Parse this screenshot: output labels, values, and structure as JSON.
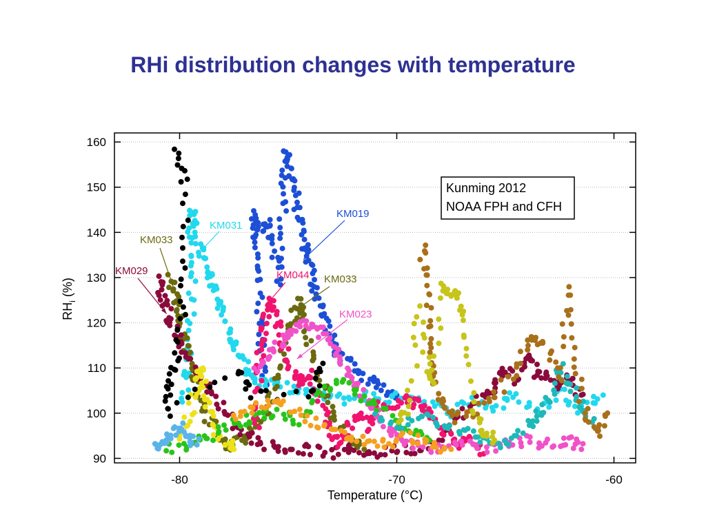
{
  "slide": {
    "title": "RHi distribution changes with temperature"
  },
  "colors": {
    "title": "#2e3192",
    "KM019": "#1d4fd6",
    "KM031": "#22d8ee",
    "KM033": "#6b6a10",
    "KM029": "#8b0a3c",
    "KM044": "#f0146e",
    "KM023": "#f052c8",
    "other_yellow": "#ece21a",
    "other_green": "#29c41a",
    "other_teal": "#1fb8b8",
    "other_brown": "#a8701a",
    "other_olive": "#c7c41a",
    "other_black": "#000000",
    "other_orange": "#f5a020",
    "other_skyblue": "#5ab4e8"
  },
  "chart_data": {
    "type": "scatter",
    "xlabel": "Temperature (°C)",
    "ylabel_main": "RH",
    "ylabel_sub": "i",
    "ylabel_unit": " (%)",
    "xlim": [
      -83,
      -59
    ],
    "ylim": [
      89,
      162
    ],
    "xticks": [
      -80,
      -70,
      -60
    ],
    "xtick_labels": [
      "-80",
      "-70",
      "-60"
    ],
    "yticks": [
      90,
      100,
      110,
      120,
      130,
      140,
      150,
      160
    ],
    "ytick_labels": [
      "90",
      "100",
      "110",
      "120",
      "130",
      "140",
      "150",
      "160"
    ],
    "grid": "horizontal dotted",
    "legend": {
      "line1": "Kunming 2012",
      "line2": "NOAA FPH and CFH",
      "placement": "top-right"
    },
    "series": [
      {
        "name": "KM019",
        "color": "#1d4fd6",
        "trace": [
          [
            -76.0,
            104
          ],
          [
            -76.2,
            112
          ],
          [
            -76.3,
            120
          ],
          [
            -76.4,
            130
          ],
          [
            -76.5,
            138
          ],
          [
            -76.6,
            144
          ],
          [
            -76.3,
            140
          ],
          [
            -75.9,
            142
          ],
          [
            -75.6,
            136
          ],
          [
            -75.4,
            128
          ],
          [
            -75.3,
            140
          ],
          [
            -75.2,
            150
          ],
          [
            -75.1,
            158
          ],
          [
            -75.0,
            155
          ],
          [
            -74.8,
            152
          ],
          [
            -74.6,
            146
          ],
          [
            -74.4,
            141
          ],
          [
            -74.2,
            136
          ],
          [
            -74.0,
            133
          ],
          [
            -73.8,
            128
          ],
          [
            -73.5,
            124
          ],
          [
            -73.2,
            119
          ],
          [
            -72.8,
            114
          ],
          [
            -72.2,
            111
          ],
          [
            -71.5,
            108
          ],
          [
            -70.8,
            106
          ],
          [
            -70.0,
            104
          ]
        ]
      },
      {
        "name": "KM031",
        "color": "#22d8ee",
        "trace": [
          [
            -79.8,
            103
          ],
          [
            -79.6,
            110
          ],
          [
            -79.5,
            120
          ],
          [
            -79.4,
            130
          ],
          [
            -79.5,
            138
          ],
          [
            -79.5,
            145
          ],
          [
            -79.2,
            140
          ],
          [
            -79.0,
            135
          ],
          [
            -78.7,
            131
          ],
          [
            -78.4,
            128
          ],
          [
            -78.1,
            124
          ],
          [
            -77.8,
            119
          ],
          [
            -77.5,
            115
          ],
          [
            -77.2,
            112
          ],
          [
            -76.8,
            109
          ],
          [
            -76.4,
            107
          ],
          [
            -75.5,
            106
          ],
          [
            -74.5,
            105
          ],
          [
            -73.5,
            104
          ],
          [
            -72.5,
            103
          ],
          [
            -71.5,
            104
          ],
          [
            -70.5,
            103
          ],
          [
            -69.5,
            104
          ],
          [
            -68.5,
            102
          ],
          [
            -67.5,
            100
          ],
          [
            -66.5,
            103
          ],
          [
            -65.5,
            101
          ],
          [
            -64.5,
            104
          ],
          [
            -63.5,
            100
          ],
          [
            -62.5,
            105
          ],
          [
            -61.5,
            101
          ],
          [
            -60.5,
            104
          ]
        ]
      },
      {
        "name": "KM033",
        "color": "#6b6a10",
        "trace": [
          [
            -80.4,
            130
          ],
          [
            -80.2,
            126
          ],
          [
            -80.0,
            121
          ],
          [
            -79.8,
            116
          ],
          [
            -79.5,
            111
          ],
          [
            -79.2,
            106
          ],
          [
            -78.9,
            102
          ],
          [
            -78.6,
            98
          ],
          [
            -78.2,
            95
          ],
          [
            -77.8,
            92
          ],
          [
            -77.2,
            94
          ],
          [
            -76.6,
            96
          ],
          [
            -76.0,
            100
          ],
          [
            -75.6,
            106
          ],
          [
            -75.3,
            112
          ],
          [
            -75.0,
            118
          ],
          [
            -74.7,
            122
          ],
          [
            -74.4,
            125
          ],
          [
            -74.1,
            118
          ],
          [
            -73.8,
            111
          ],
          [
            -73.3,
            104
          ],
          [
            -72.8,
            98
          ],
          [
            -72.2,
            94
          ],
          [
            -71.5,
            92
          ]
        ]
      },
      {
        "name": "KM029",
        "color": "#8b0a3c",
        "trace": [
          [
            -81.0,
            130
          ],
          [
            -80.8,
            126
          ],
          [
            -80.5,
            122
          ],
          [
            -80.2,
            118
          ],
          [
            -79.8,
            114
          ],
          [
            -79.3,
            110
          ],
          [
            -78.8,
            106
          ],
          [
            -78.2,
            102
          ],
          [
            -77.5,
            98
          ],
          [
            -76.8,
            95
          ],
          [
            -76.0,
            93
          ],
          [
            -75.0,
            92
          ],
          [
            -74.0,
            92
          ],
          [
            -73.0,
            91
          ],
          [
            -72.0,
            92
          ],
          [
            -71.0,
            91
          ],
          [
            -70.0,
            92
          ],
          [
            -69.0,
            92
          ],
          [
            -68.0,
            95
          ],
          [
            -67.0,
            100
          ],
          [
            -66.0,
            104
          ],
          [
            -65.5,
            106
          ],
          [
            -65.0,
            110
          ],
          [
            -64.5,
            107
          ],
          [
            -64.0,
            113
          ],
          [
            -63.5,
            109
          ],
          [
            -63.0,
            108
          ],
          [
            -62.5,
            106
          ],
          [
            -62.0,
            108
          ],
          [
            -61.5,
            104
          ]
        ]
      },
      {
        "name": "KM044",
        "color": "#f0146e",
        "trace": [
          [
            -76.5,
            96
          ],
          [
            -76.4,
            104
          ],
          [
            -76.3,
            112
          ],
          [
            -76.2,
            118
          ],
          [
            -76.0,
            122
          ],
          [
            -75.8,
            125
          ],
          [
            -75.5,
            120
          ],
          [
            -75.2,
            114
          ],
          [
            -74.8,
            109
          ],
          [
            -74.4,
            107
          ],
          [
            -74.0,
            109
          ],
          [
            -73.6,
            103
          ],
          [
            -73.2,
            98
          ],
          [
            -72.8,
            93
          ],
          [
            -72.3,
            96
          ],
          [
            -71.8,
            100
          ],
          [
            -71.3,
            97
          ],
          [
            -70.8,
            102
          ],
          [
            -70.2,
            101
          ],
          [
            -69.6,
            103
          ],
          [
            -69.0,
            102
          ],
          [
            -68.4,
            99
          ],
          [
            -67.8,
            96
          ],
          [
            -67.2,
            93
          ],
          [
            -66.6,
            94
          ],
          [
            -66.0,
            91
          ]
        ]
      },
      {
        "name": "KM023",
        "color": "#f052c8",
        "trace": [
          [
            -76.5,
            110
          ],
          [
            -76.0,
            112
          ],
          [
            -75.5,
            115
          ],
          [
            -75.0,
            117
          ],
          [
            -74.5,
            119
          ],
          [
            -74.0,
            120
          ],
          [
            -73.5,
            118
          ],
          [
            -73.0,
            115
          ],
          [
            -72.5,
            111
          ],
          [
            -72.0,
            108
          ],
          [
            -71.5,
            104
          ],
          [
            -71.0,
            100
          ],
          [
            -70.5,
            97
          ],
          [
            -70.0,
            94
          ],
          [
            -69.0,
            93
          ],
          [
            -68.0,
            92
          ],
          [
            -67.0,
            93
          ],
          [
            -66.0,
            92
          ],
          [
            -65.0,
            93
          ],
          [
            -64.0,
            94
          ],
          [
            -63.0,
            93
          ],
          [
            -62.0,
            94
          ],
          [
            -61.5,
            92
          ]
        ]
      },
      {
        "name": "",
        "color": "#ece21a",
        "trace": [
          [
            -80.0,
            94
          ],
          [
            -79.5,
            100
          ],
          [
            -79.2,
            106
          ],
          [
            -79.0,
            110
          ],
          [
            -78.8,
            104
          ],
          [
            -78.5,
            98
          ],
          [
            -78.0,
            94
          ],
          [
            -77.5,
            92
          ]
        ]
      },
      {
        "name": "",
        "color": "#29c41a",
        "trace": [
          [
            -80.5,
            92
          ],
          [
            -79.5,
            93
          ],
          [
            -78.5,
            95
          ],
          [
            -77.5,
            98
          ],
          [
            -76.5,
            99
          ],
          [
            -75.5,
            100
          ],
          [
            -74.5,
            98
          ],
          [
            -73.5,
            104
          ],
          [
            -72.5,
            107
          ],
          [
            -71.5,
            103
          ],
          [
            -70.5,
            100
          ],
          [
            -69.5,
            96
          ],
          [
            -68.5,
            94
          ]
        ]
      },
      {
        "name": "",
        "color": "#1fb8b8",
        "trace": [
          [
            -71.0,
            99
          ],
          [
            -70.0,
            97
          ],
          [
            -69.0,
            100
          ],
          [
            -68.0,
            98
          ],
          [
            -67.0,
            96
          ],
          [
            -66.0,
            94
          ],
          [
            -65.0,
            93
          ],
          [
            -64.0,
            97
          ],
          [
            -63.5,
            99
          ],
          [
            -63.0,
            103
          ],
          [
            -62.5,
            110
          ],
          [
            -62.0,
            106
          ],
          [
            -61.5,
            101
          ],
          [
            -61.0,
            98
          ]
        ]
      },
      {
        "name": "",
        "color": "#a8701a",
        "trace": [
          [
            -68.8,
            137
          ],
          [
            -68.7,
            130
          ],
          [
            -68.5,
            120
          ],
          [
            -68.3,
            110
          ],
          [
            -68.0,
            103
          ],
          [
            -67.5,
            99
          ],
          [
            -66.5,
            100
          ],
          [
            -65.5,
            104
          ],
          [
            -64.5,
            110
          ],
          [
            -63.8,
            116
          ],
          [
            -63.2,
            115
          ],
          [
            -62.5,
            108
          ],
          [
            -62.1,
            128
          ],
          [
            -61.8,
            112
          ],
          [
            -61.3,
            100
          ],
          [
            -60.8,
            96
          ],
          [
            -60.3,
            100
          ]
        ]
      },
      {
        "name": "",
        "color": "#c7c41a",
        "trace": [
          [
            -69.8,
            98
          ],
          [
            -69.4,
            102
          ],
          [
            -69.0,
            123
          ],
          [
            -68.6,
            110
          ],
          [
            -68.3,
            106
          ],
          [
            -67.9,
            128
          ],
          [
            -67.5,
            127
          ],
          [
            -67.1,
            126
          ],
          [
            -66.9,
            117
          ],
          [
            -66.5,
            100
          ],
          [
            -66.0,
            96
          ],
          [
            -65.5,
            94
          ]
        ]
      },
      {
        "name": "",
        "color": "#000000",
        "trace": [
          [
            -80.1,
            158
          ],
          [
            -79.8,
            151
          ],
          [
            -79.7,
            133
          ],
          [
            -79.9,
            120
          ],
          [
            -80.2,
            112
          ],
          [
            -80.5,
            106
          ],
          [
            -80.6,
            100
          ],
          [
            -77.3,
            110
          ],
          [
            -76.8,
            104
          ],
          [
            -73.8,
            104
          ],
          [
            -73.4,
            111
          ]
        ]
      },
      {
        "name": "",
        "color": "#f5a020",
        "trace": [
          [
            -77.5,
            99
          ],
          [
            -76.5,
            101
          ],
          [
            -75.5,
            103
          ],
          [
            -74.5,
            100
          ],
          [
            -73.5,
            97
          ],
          [
            -72.5,
            95
          ],
          [
            -71.5,
            94
          ],
          [
            -70.5,
            93
          ],
          [
            -69.5,
            95
          ],
          [
            -68.5,
            93
          ],
          [
            -67.5,
            92
          ]
        ]
      },
      {
        "name": "",
        "color": "#5ab4e8",
        "trace": [
          [
            -81.2,
            92
          ],
          [
            -80.8,
            93
          ],
          [
            -80.4,
            95
          ],
          [
            -80.0,
            97
          ],
          [
            -79.6,
            95
          ],
          [
            -79.2,
            93
          ]
        ]
      }
    ],
    "annotations": [
      {
        "text": "KM031",
        "series": "KM031",
        "arrow_to": [
          -79.0,
          136
        ]
      },
      {
        "text": "KM019",
        "series": "KM019",
        "arrow_to": [
          -74.3,
          134
        ]
      },
      {
        "text": "KM033",
        "series": "KM033",
        "arrow_to": [
          -80.3,
          128
        ]
      },
      {
        "text": "KM029",
        "series": "KM029",
        "arrow_to": [
          -80.6,
          122
        ]
      },
      {
        "text": "KM044",
        "series": "KM044",
        "arrow_to": [
          -76.0,
          124
        ]
      },
      {
        "text": "KM033",
        "series": "KM033",
        "arrow_to": [
          -74.6,
          123
        ]
      },
      {
        "text": "KM023",
        "series": "KM023",
        "arrow_to": [
          -74.6,
          112
        ]
      }
    ]
  }
}
